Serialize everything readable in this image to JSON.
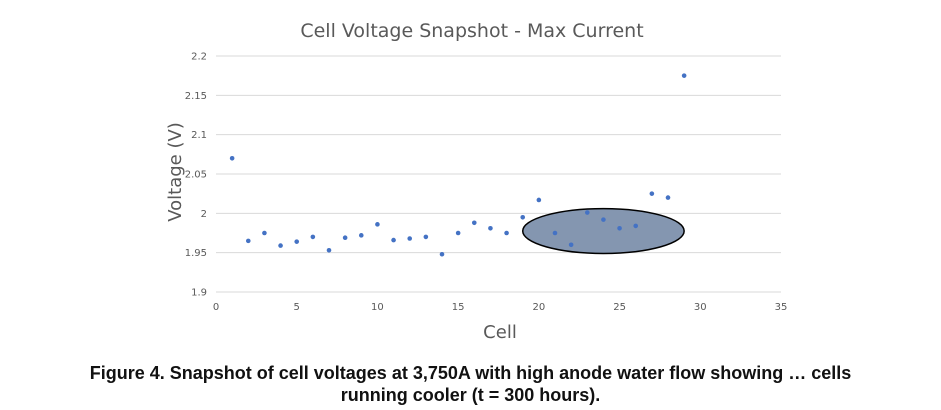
{
  "chart_data": {
    "type": "scatter",
    "title": "Cell Voltage Snapshot - Max Current",
    "xlabel": "Cell",
    "ylabel": "Voltage (V)",
    "xlim": [
      0,
      35
    ],
    "ylim": [
      1.9,
      2.2
    ],
    "xticks": [
      0,
      5,
      10,
      15,
      20,
      25,
      30,
      35
    ],
    "yticks": [
      1.9,
      1.95,
      2,
      2.05,
      2.1,
      2.15,
      2.2
    ],
    "grid": "horizontal",
    "series": [
      {
        "color": "#4472c4",
        "points": [
          [
            1,
            2.07
          ],
          [
            2,
            1.965
          ],
          [
            3,
            1.975
          ],
          [
            4,
            1.959
          ],
          [
            5,
            1.964
          ],
          [
            6,
            1.97
          ],
          [
            7,
            1.953
          ],
          [
            8,
            1.969
          ],
          [
            9,
            1.972
          ],
          [
            10,
            1.986
          ],
          [
            11,
            1.966
          ],
          [
            12,
            1.968
          ],
          [
            13,
            1.97
          ],
          [
            14,
            1.948
          ],
          [
            15,
            1.975
          ],
          [
            16,
            1.988
          ],
          [
            17,
            1.981
          ],
          [
            18,
            1.975
          ],
          [
            19,
            1.995
          ],
          [
            20,
            2.017
          ],
          [
            21,
            1.975
          ],
          [
            22,
            1.96
          ],
          [
            23,
            2.001
          ],
          [
            24,
            1.992
          ],
          [
            25,
            1.981
          ],
          [
            26,
            1.984
          ],
          [
            27,
            2.025
          ],
          [
            28,
            2.02
          ],
          [
            29,
            2.175
          ]
        ]
      }
    ],
    "annotation": {
      "shape": "ellipse",
      "x_range": [
        19,
        29
      ],
      "y_range": [
        1.949,
        2.006
      ],
      "fill": "#8496b0",
      "stroke": "#000000"
    }
  },
  "caption": {
    "line1": "Figure 4. Snapshot of cell voltages at 3,750A with high anode water flow showing … cells",
    "line2": "running cooler (t = 300 hours)."
  }
}
